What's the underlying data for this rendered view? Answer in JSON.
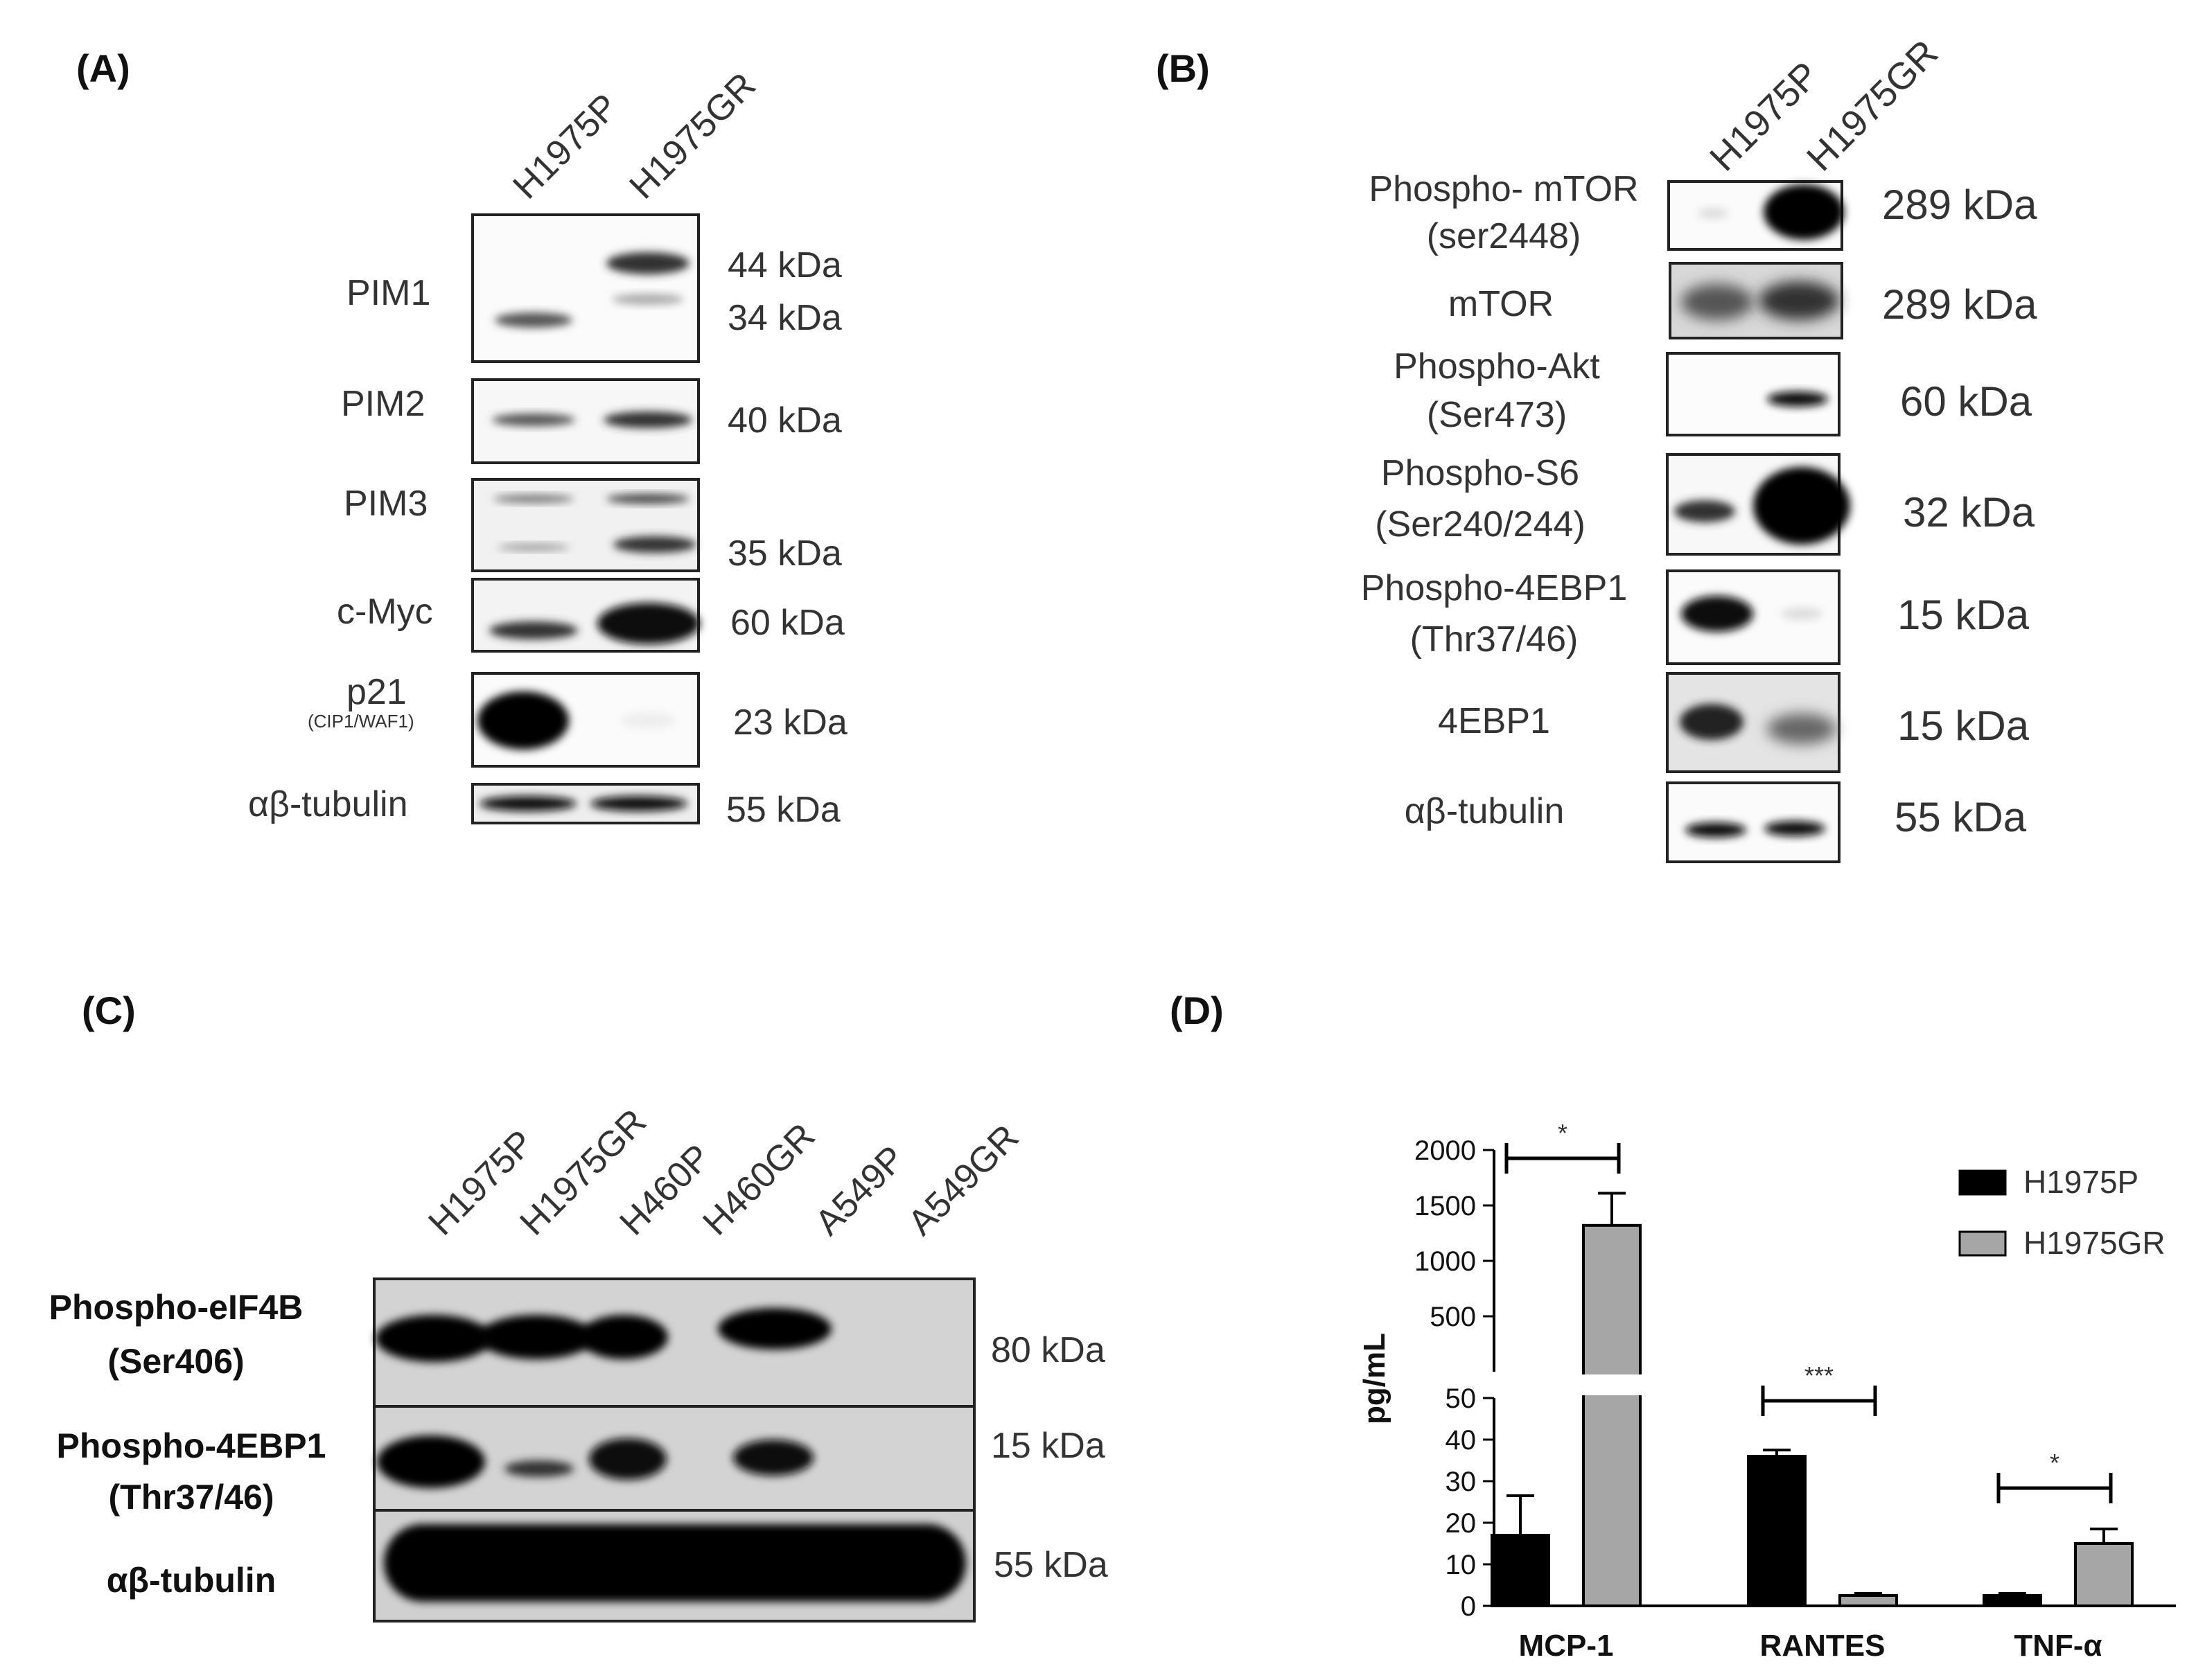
{
  "panels": {
    "A": {
      "label": "(A)",
      "lanes": [
        "H1975P",
        "H1975GR"
      ],
      "blots": [
        {
          "name": "PIM1",
          "sub": "",
          "kda": [
            "44 kDa",
            "34 kDa"
          ]
        },
        {
          "name": "PIM2",
          "sub": "",
          "kda": [
            "40 kDa"
          ]
        },
        {
          "name": "PIM3",
          "sub": "",
          "kda": [
            "35 kDa"
          ]
        },
        {
          "name": "c-Myc",
          "sub": "",
          "kda": [
            "60 kDa"
          ]
        },
        {
          "name": "p21",
          "sub": "(CIP1/WAF1)",
          "kda": [
            "23 kDa"
          ]
        },
        {
          "name": "αβ-tubulin",
          "sub": "",
          "kda": [
            "55 kDa"
          ]
        }
      ]
    },
    "B": {
      "label": "(B)",
      "lanes": [
        "H1975P",
        "H1975GR"
      ],
      "blots": [
        {
          "line1": "Phospho- mTOR",
          "line2": "(ser2448)",
          "kda": "289 kDa"
        },
        {
          "line1": "mTOR",
          "line2": "",
          "kda": "289 kDa"
        },
        {
          "line1": "Phospho-Akt",
          "line2": "(Ser473)",
          "kda": "60 kDa"
        },
        {
          "line1": "Phospho-S6",
          "line2": "(Ser240/244)",
          "kda": "32 kDa"
        },
        {
          "line1": "Phospho-4EBP1",
          "line2": "(Thr37/46)",
          "kda": "15 kDa"
        },
        {
          "line1": "4EBP1",
          "line2": "",
          "kda": "15 kDa"
        },
        {
          "line1": "αβ-tubulin",
          "line2": "",
          "kda": "55 kDa"
        }
      ]
    },
    "C": {
      "label": "(C)",
      "lanes": [
        "H1975P",
        "H1975GR",
        "H460P",
        "H460GR",
        "A549P",
        "A549GR"
      ],
      "blots": [
        {
          "line1": "Phospho-eIF4B",
          "line2": "(Ser406)",
          "kda": "80 kDa"
        },
        {
          "line1": "Phospho-4EBP1",
          "line2": "(Thr37/46)",
          "kda": "15 kDa"
        },
        {
          "line1": "αβ-tubulin",
          "line2": "",
          "kda": "55 kDa"
        }
      ]
    },
    "D": {
      "label": "(D)"
    }
  },
  "chart_data": {
    "type": "bar",
    "title": "",
    "xlabel": "",
    "ylabel": "pg/mL",
    "categories": [
      "MCP-1",
      "RANTES",
      "TNF-α"
    ],
    "series": [
      {
        "name": "H1975P",
        "values": [
          17,
          36,
          2.5
        ],
        "errors": [
          9.5,
          1.5,
          0.5
        ],
        "color": "#000000"
      },
      {
        "name": "H1975GR",
        "values": [
          1320,
          2.5,
          15
        ],
        "errors": [
          290,
          0.5,
          3.5
        ],
        "color": "#a6a6a6"
      }
    ],
    "y_axis_broken": true,
    "y_lower_range": [
      0,
      50
    ],
    "y_upper_range": [
      0,
      2000
    ],
    "y_lower_ticks": [
      "0",
      "10",
      "20",
      "30",
      "40",
      "50"
    ],
    "y_upper_ticks": [
      "500",
      "1000",
      "1500",
      "2000"
    ],
    "significance": [
      "*",
      "***",
      "*"
    ],
    "legend_position": "top-right"
  }
}
